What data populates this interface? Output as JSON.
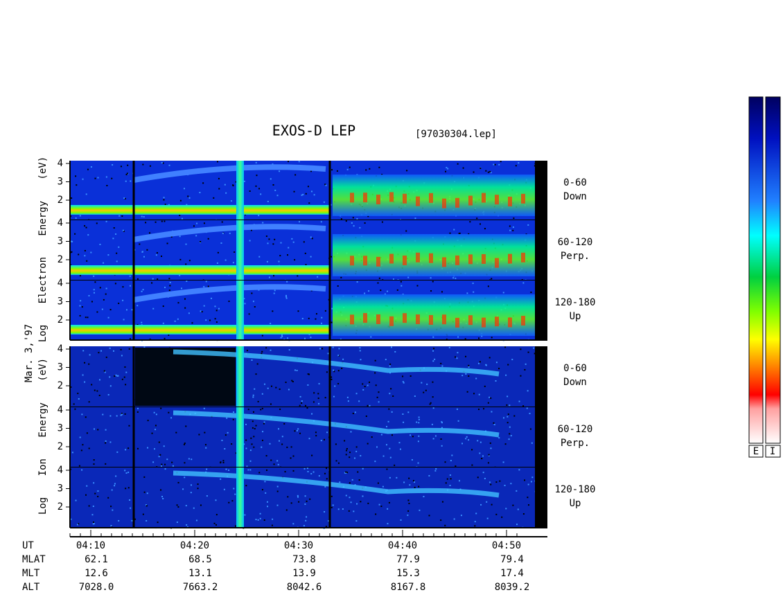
{
  "title": "EXOS-D LEP",
  "file": "[97030304.lep]",
  "date": "Mar. 3,'97",
  "electron": {
    "ylabel": "Log Electron Energy (eV)",
    "panels": [
      {
        "angle": "0-60",
        "dir": "Down",
        "yticks": [
          4,
          3,
          2
        ]
      },
      {
        "angle": "60-120",
        "dir": "Perp.",
        "yticks": [
          4,
          3,
          2
        ]
      },
      {
        "angle": "120-180",
        "dir": "Up",
        "yticks": [
          4,
          3,
          2
        ]
      }
    ]
  },
  "ion": {
    "ylabel": "Log Ion Energy (eV)",
    "panels": [
      {
        "angle": "0-60",
        "dir": "Down",
        "yticks": [
          4,
          3,
          2
        ]
      },
      {
        "angle": "60-120",
        "dir": "Perp.",
        "yticks": [
          4,
          3,
          2
        ]
      },
      {
        "angle": "120-180",
        "dir": "Up",
        "yticks": [
          4,
          3,
          2
        ]
      }
    ]
  },
  "ephemeris": {
    "names": [
      "UT",
      "MLAT",
      "MLT",
      "ALT"
    ],
    "columns": [
      [
        "04:10",
        "62.1",
        "12.6",
        "7028.0"
      ],
      [
        "04:20",
        "68.5",
        "13.1",
        "7663.2"
      ],
      [
        "04:30",
        "73.8",
        "13.9",
        "8042.6"
      ],
      [
        "04:40",
        "77.9",
        "15.3",
        "8167.8"
      ],
      [
        "04:50",
        "79.4",
        "17.4",
        "8039.2"
      ]
    ]
  },
  "colorbar": {
    "labels": [
      "E",
      "I"
    ]
  }
}
